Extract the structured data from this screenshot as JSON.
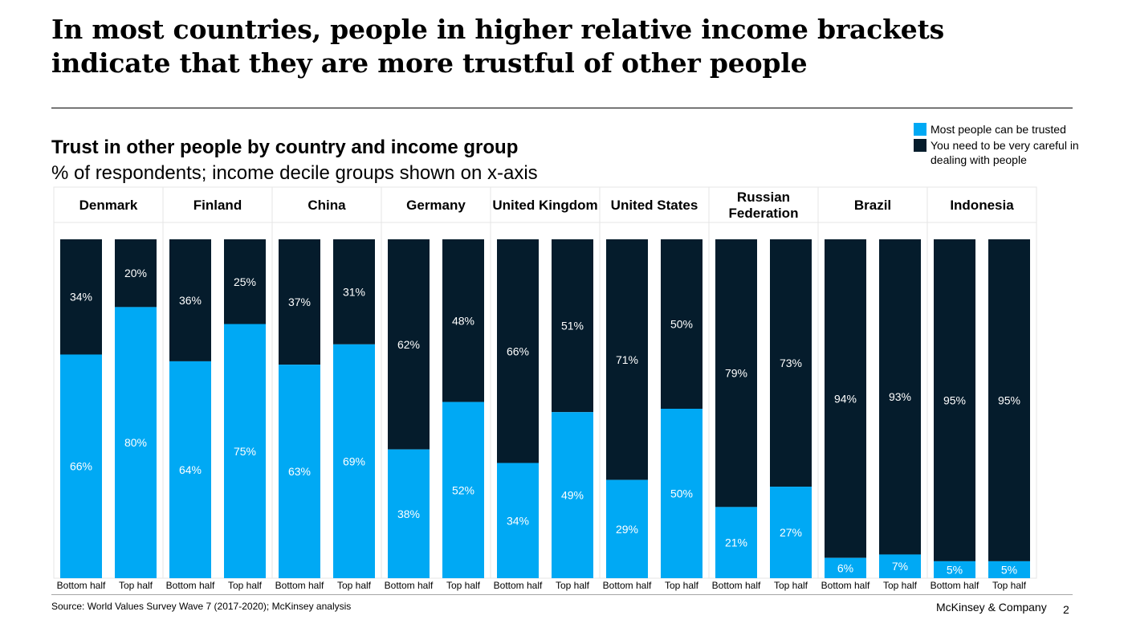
{
  "headline": "In most countries, people in higher relative income brackets indicate that they are more trustful of other people",
  "subtitle": "Trust in other people by country and income group",
  "subsubtitle": "% of respondents; income decile groups shown on x-axis",
  "legend": [
    {
      "label": "Most people can be trusted",
      "color": "#00a9f4"
    },
    {
      "label": "You need to be very careful in dealing with people",
      "color": "#051c2c"
    }
  ],
  "footer": {
    "source": "Source: World Values Survey Wave 7 (2017-2020); McKinsey analysis",
    "brand": "McKinsey & Company",
    "page": "2"
  },
  "chart_data": {
    "type": "bar",
    "stacked": true,
    "groups": [
      "Denmark",
      "Finland",
      "China",
      "Germany",
      "United Kingdom",
      "United States",
      "Russian Federation",
      "Brazil",
      "Indonesia"
    ],
    "categories": [
      "Bottom half",
      "Top half"
    ],
    "series": [
      {
        "name": "Most people can be trusted",
        "color": "#00a9f4",
        "values": [
          [
            66,
            80
          ],
          [
            64,
            75
          ],
          [
            63,
            69
          ],
          [
            38,
            52
          ],
          [
            34,
            49
          ],
          [
            29,
            50
          ],
          [
            21,
            27
          ],
          [
            6,
            7
          ],
          [
            5,
            5
          ]
        ]
      },
      {
        "name": "You need to be very careful in dealing with people",
        "color": "#051c2c",
        "values": [
          [
            34,
            20
          ],
          [
            36,
            25
          ],
          [
            37,
            31
          ],
          [
            62,
            48
          ],
          [
            66,
            51
          ],
          [
            71,
            50
          ],
          [
            79,
            73
          ],
          [
            94,
            93
          ],
          [
            95,
            95
          ]
        ]
      }
    ],
    "ylim": [
      0,
      100
    ],
    "value_format": "%"
  }
}
